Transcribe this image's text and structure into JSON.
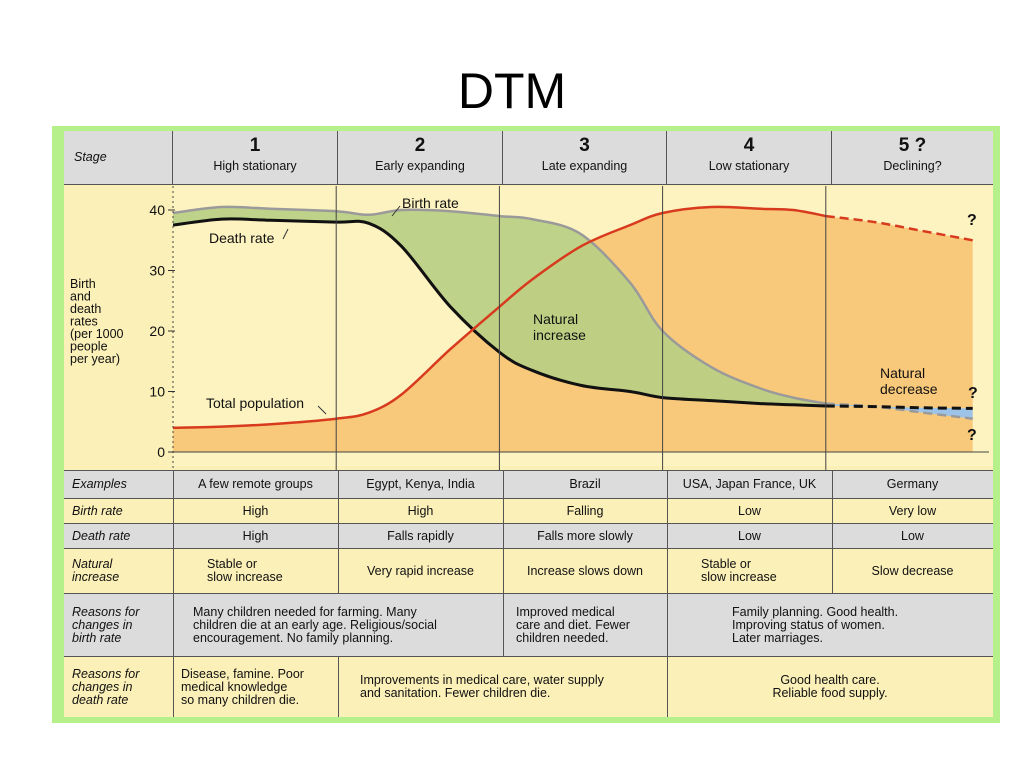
{
  "title": "DTM",
  "chart_data": {
    "type": "line",
    "y_axis_label": "Birth\nand\ndeath\nrates\n(per 1000\npeople\nper year)",
    "y_ticks": [
      0,
      10,
      20,
      30,
      40
    ],
    "ylim": [
      0,
      42
    ],
    "x": [
      0,
      0.3,
      0.6,
      1.0,
      1.2,
      1.4,
      1.7,
      2.0,
      2.2,
      2.5,
      2.8,
      3.0,
      3.3,
      3.6,
      3.8,
      4.0,
      4.3,
      4.6,
      4.9
    ],
    "series": [
      {
        "name": "Birth rate",
        "color": "#9a9a9a",
        "values": [
          39.5,
          40.5,
          40.2,
          39.8,
          39.2,
          40.0,
          39.8,
          39.0,
          38.5,
          36.0,
          28.0,
          20.0,
          14.0,
          10.5,
          9.0,
          8.0,
          7.5,
          6.5,
          5.5
        ]
      },
      {
        "name": "Death rate",
        "color": "#111111",
        "values": [
          37.5,
          38.5,
          38.3,
          38.0,
          37.8,
          34.0,
          24.0,
          16.5,
          13.5,
          11.0,
          10.0,
          9.0,
          8.5,
          8.0,
          7.8,
          7.6,
          7.5,
          7.3,
          7.2
        ]
      },
      {
        "name": "Total population",
        "color": "#d83a1e",
        "values": [
          4.0,
          4.2,
          4.6,
          5.5,
          6.5,
          9.5,
          17.0,
          24.0,
          28.5,
          34.0,
          37.5,
          39.5,
          40.5,
          40.2,
          40.0,
          39.0,
          38.0,
          36.5,
          35.0
        ]
      }
    ],
    "projection_from_x": 4.0,
    "annotations": [
      "Birth rate",
      "Death rate",
      "Natural\nincrease",
      "Total population",
      "Natural\ndecrease",
      "?",
      "?",
      "?"
    ]
  },
  "table": {
    "stage_label": "Stage",
    "stages": [
      {
        "num": "1",
        "name": "High stationary"
      },
      {
        "num": "2",
        "name": "Early expanding"
      },
      {
        "num": "3",
        "name": "Late expanding"
      },
      {
        "num": "4",
        "name": "Low stationary"
      },
      {
        "num": "5 ?",
        "name": "Declining?"
      }
    ],
    "rows": {
      "examples": {
        "label": "Examples",
        "cells": [
          "A few remote groups",
          "Egypt, Kenya, India",
          "Brazil",
          "USA, Japan France, UK",
          "Germany"
        ]
      },
      "birth_rate": {
        "label": "Birth rate",
        "cells": [
          "High",
          "High",
          "Falling",
          "Low",
          "Very low"
        ]
      },
      "death_rate": {
        "label": "Death rate",
        "cells": [
          "High",
          "Falls rapidly",
          "Falls more slowly",
          "Low",
          "Low"
        ]
      },
      "natural_increase": {
        "label": "Natural\nincrease",
        "cells": [
          "Stable or\nslow increase",
          "Very rapid increase",
          "Increase slows down",
          "Stable or\nslow increase",
          "Slow decrease"
        ]
      },
      "reasons_birth": {
        "label": "Reasons for\nchanges in\nbirth rate",
        "cells": [
          "Many children needed for farming. Many\nchildren die at an early age. Religious/social\nencouragement. No family planning.",
          "Improved medical\ncare and diet. Fewer\nchildren needed.",
          "Family planning. Good health.\nImproving status of women.\nLater marriages."
        ]
      },
      "reasons_death": {
        "label": "Reasons for\nchanges in\ndeath rate",
        "cells": [
          "Disease, famine. Poor\nmedical knowledge\nso many children die.",
          "Improvements in medical care, water supply\nand sanitation. Fewer children die.",
          "Good health care.\nReliable food supply."
        ]
      }
    }
  }
}
